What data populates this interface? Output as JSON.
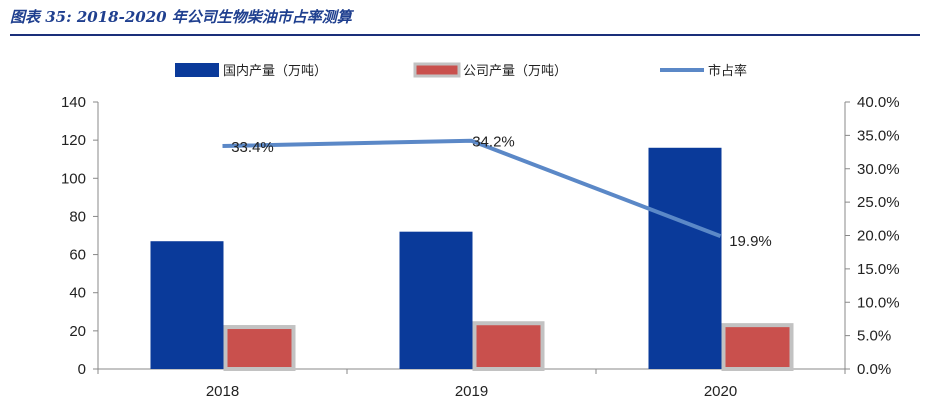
{
  "figure_title": "图表 35: 2018-2020 年公司生物柴油市占率测算",
  "colors": {
    "title": "#1f3f8f",
    "rule": "#1a2f7a",
    "domestic": "#0a3a9a",
    "company": "#c9504d",
    "company_border": "#c2c2c2",
    "share_line": "#5b88c7",
    "axis": "#888888"
  },
  "chart_data": {
    "type": "bar",
    "categories": [
      "2018",
      "2019",
      "2020"
    ],
    "series": [
      {
        "name": "国内产量（万吨）",
        "type": "bar",
        "axis": "left",
        "values": [
          67,
          72,
          116
        ]
      },
      {
        "name": "公司产量（万吨）",
        "type": "bar",
        "axis": "left",
        "values": [
          22,
          24,
          23
        ]
      },
      {
        "name": "市占率",
        "type": "line",
        "axis": "right",
        "values": [
          33.4,
          34.2,
          19.9
        ],
        "labels": [
          "33.4%",
          "34.2%",
          "19.9%"
        ]
      }
    ],
    "y_left": {
      "min": 0,
      "max": 140,
      "step": 20,
      "ticks": [
        "0",
        "20",
        "40",
        "60",
        "80",
        "100",
        "120",
        "140"
      ]
    },
    "y_right": {
      "min": 0,
      "max": 40,
      "step": 5,
      "ticks": [
        "0.0%",
        "5.0%",
        "10.0%",
        "15.0%",
        "20.0%",
        "25.0%",
        "30.0%",
        "35.0%",
        "40.0%"
      ]
    },
    "legend_position": "top",
    "grid": false
  }
}
